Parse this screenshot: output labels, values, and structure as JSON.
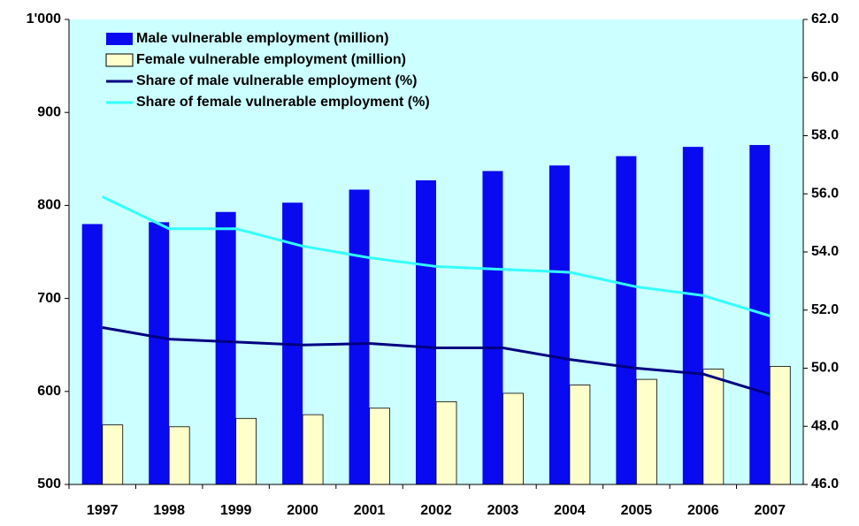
{
  "chart_data": {
    "type": "bar",
    "categories": [
      "1997",
      "1998",
      "1999",
      "2000",
      "2001",
      "2002",
      "2003",
      "2004",
      "2005",
      "2006",
      "2007"
    ],
    "series": [
      {
        "name": "Male vulnerable employment (million)",
        "type": "bar",
        "color": "#0a0af0",
        "values": [
          780,
          782,
          793,
          803,
          817,
          827,
          837,
          843,
          853,
          863,
          865
        ]
      },
      {
        "name": "Female vulnerable employment (million)",
        "type": "bar",
        "color": "#ffffcc",
        "values": [
          564,
          562,
          571,
          575,
          582,
          589,
          598,
          607,
          613,
          624,
          627
        ]
      },
      {
        "name": "Share of male vulnerable employment (%)",
        "type": "line",
        "axis": "y2",
        "color": "#000080",
        "values": [
          51.4,
          51.0,
          50.9,
          50.8,
          50.85,
          50.7,
          50.7,
          50.3,
          50.0,
          49.8,
          49.1
        ]
      },
      {
        "name": "Share of female vulnerable employment (%)",
        "type": "line",
        "axis": "y2",
        "color": "#33ffff",
        "values": [
          55.9,
          54.8,
          54.8,
          54.2,
          53.8,
          53.5,
          53.4,
          53.3,
          52.8,
          52.5,
          51.8
        ]
      }
    ],
    "ylim": [
      500,
      1000
    ],
    "yticks": [
      500,
      600,
      700,
      800,
      900,
      {
        "value": 1000,
        "label": "1'000"
      }
    ],
    "y2lim": [
      46,
      62
    ],
    "y2ticks": [
      {
        "value": 46,
        "label": "46.0"
      },
      {
        "value": 48,
        "label": "48.0"
      },
      {
        "value": 50,
        "label": "50.0"
      },
      {
        "value": 52,
        "label": "52.0"
      },
      {
        "value": 54,
        "label": "54.0"
      },
      {
        "value": 56,
        "label": "56.0"
      },
      {
        "value": 58,
        "label": "58.0"
      },
      {
        "value": 60,
        "label": "60.0"
      },
      {
        "value": 62,
        "label": "62.0"
      }
    ],
    "plot_background": "#ccffff",
    "legend": "upper-left"
  }
}
